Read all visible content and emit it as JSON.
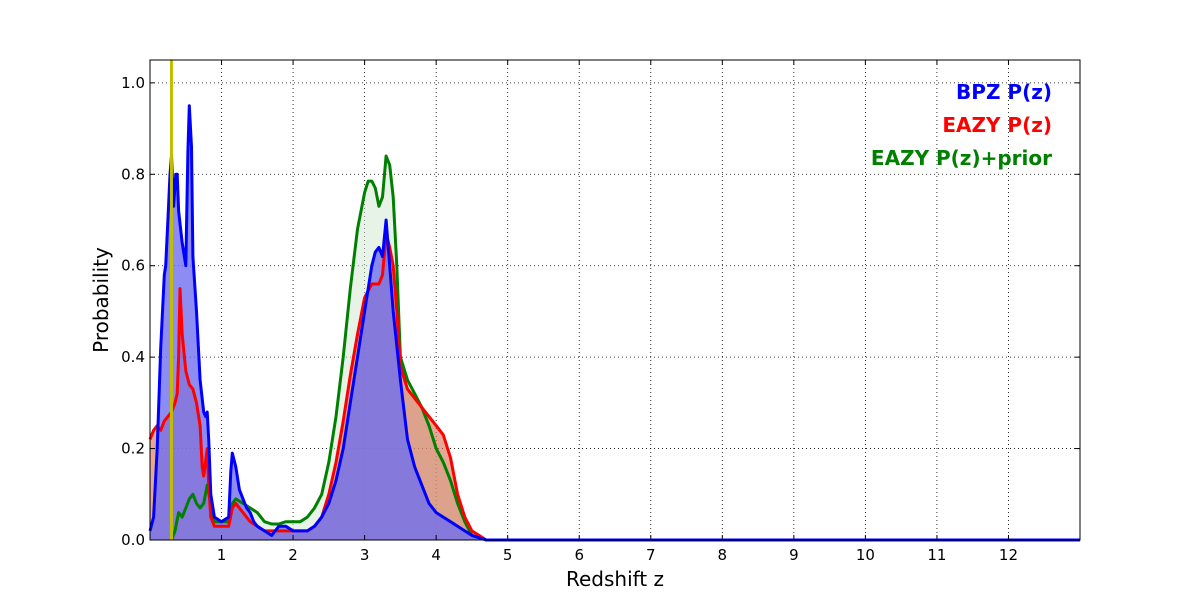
{
  "chart_data": {
    "type": "area",
    "title": "",
    "xlabel": "Redshift z",
    "ylabel": "Probability",
    "xlim": [
      0,
      13
    ],
    "ylim": [
      0,
      1.05
    ],
    "xticks": [
      1,
      2,
      3,
      4,
      5,
      6,
      7,
      8,
      9,
      10,
      11,
      12
    ],
    "yticks": [
      0.0,
      0.2,
      0.4,
      0.6,
      0.8,
      1.0
    ],
    "ytick_labels": [
      "0.0",
      "0.2",
      "0.4",
      "0.6",
      "0.8",
      "1.0"
    ],
    "grid": true,
    "legend_position": "top-right",
    "vertical_line": {
      "x": 0.3,
      "color": "#bfbf00"
    },
    "series": [
      {
        "name": "BPZ P(z)",
        "color": "#0000ff",
        "fill": "#6f6ff0",
        "points": [
          [
            0,
            0.02
          ],
          [
            0.05,
            0.05
          ],
          [
            0.1,
            0.2
          ],
          [
            0.15,
            0.42
          ],
          [
            0.2,
            0.58
          ],
          [
            0.22,
            0.6
          ],
          [
            0.25,
            0.7
          ],
          [
            0.28,
            0.8
          ],
          [
            0.3,
            0.84
          ],
          [
            0.33,
            0.73
          ],
          [
            0.36,
            0.8
          ],
          [
            0.38,
            0.8
          ],
          [
            0.4,
            0.72
          ],
          [
            0.45,
            0.65
          ],
          [
            0.5,
            0.6
          ],
          [
            0.53,
            0.85
          ],
          [
            0.55,
            0.95
          ],
          [
            0.58,
            0.86
          ],
          [
            0.6,
            0.62
          ],
          [
            0.65,
            0.5
          ],
          [
            0.7,
            0.35
          ],
          [
            0.75,
            0.28
          ],
          [
            0.78,
            0.27
          ],
          [
            0.8,
            0.28
          ],
          [
            0.82,
            0.22
          ],
          [
            0.85,
            0.1
          ],
          [
            0.9,
            0.05
          ],
          [
            1.0,
            0.04
          ],
          [
            1.1,
            0.05
          ],
          [
            1.13,
            0.15
          ],
          [
            1.15,
            0.19
          ],
          [
            1.2,
            0.16
          ],
          [
            1.25,
            0.11
          ],
          [
            1.3,
            0.09
          ],
          [
            1.35,
            0.07
          ],
          [
            1.4,
            0.06
          ],
          [
            1.45,
            0.04
          ],
          [
            1.5,
            0.03
          ],
          [
            1.6,
            0.02
          ],
          [
            1.7,
            0.01
          ],
          [
            1.8,
            0.03
          ],
          [
            1.9,
            0.03
          ],
          [
            2.0,
            0.02
          ],
          [
            2.1,
            0.02
          ],
          [
            2.2,
            0.02
          ],
          [
            2.3,
            0.03
          ],
          [
            2.4,
            0.05
          ],
          [
            2.5,
            0.08
          ],
          [
            2.6,
            0.13
          ],
          [
            2.7,
            0.2
          ],
          [
            2.8,
            0.3
          ],
          [
            2.9,
            0.4
          ],
          [
            3.0,
            0.5
          ],
          [
            3.1,
            0.6
          ],
          [
            3.15,
            0.63
          ],
          [
            3.2,
            0.64
          ],
          [
            3.25,
            0.62
          ],
          [
            3.3,
            0.7
          ],
          [
            3.35,
            0.6
          ],
          [
            3.4,
            0.5
          ],
          [
            3.5,
            0.35
          ],
          [
            3.6,
            0.22
          ],
          [
            3.7,
            0.16
          ],
          [
            3.8,
            0.12
          ],
          [
            3.9,
            0.08
          ],
          [
            4.0,
            0.06
          ],
          [
            4.1,
            0.05
          ],
          [
            4.2,
            0.04
          ],
          [
            4.3,
            0.03
          ],
          [
            4.4,
            0.02
          ],
          [
            4.5,
            0.01
          ],
          [
            4.7,
            0.0
          ],
          [
            13,
            0.0
          ]
        ]
      },
      {
        "name": "EAZY P(z)",
        "color": "#ff0000",
        "fill": "#d66d50",
        "points": [
          [
            0,
            0.22
          ],
          [
            0.05,
            0.24
          ],
          [
            0.1,
            0.25
          ],
          [
            0.15,
            0.24
          ],
          [
            0.2,
            0.26
          ],
          [
            0.25,
            0.27
          ],
          [
            0.3,
            0.28
          ],
          [
            0.35,
            0.3
          ],
          [
            0.38,
            0.32
          ],
          [
            0.4,
            0.4
          ],
          [
            0.42,
            0.55
          ],
          [
            0.45,
            0.45
          ],
          [
            0.5,
            0.37
          ],
          [
            0.55,
            0.34
          ],
          [
            0.6,
            0.33
          ],
          [
            0.65,
            0.3
          ],
          [
            0.7,
            0.25
          ],
          [
            0.73,
            0.16
          ],
          [
            0.75,
            0.14
          ],
          [
            0.8,
            0.2
          ],
          [
            0.82,
            0.12
          ],
          [
            0.85,
            0.05
          ],
          [
            0.9,
            0.03
          ],
          [
            1.0,
            0.03
          ],
          [
            1.1,
            0.03
          ],
          [
            1.15,
            0.07
          ],
          [
            1.2,
            0.08
          ],
          [
            1.3,
            0.06
          ],
          [
            1.4,
            0.04
          ],
          [
            1.5,
            0.03
          ],
          [
            1.6,
            0.02
          ],
          [
            1.7,
            0.02
          ],
          [
            1.8,
            0.02
          ],
          [
            1.9,
            0.02
          ],
          [
            2.0,
            0.02
          ],
          [
            2.1,
            0.02
          ],
          [
            2.2,
            0.02
          ],
          [
            2.3,
            0.03
          ],
          [
            2.4,
            0.05
          ],
          [
            2.5,
            0.1
          ],
          [
            2.6,
            0.17
          ],
          [
            2.7,
            0.26
          ],
          [
            2.8,
            0.36
          ],
          [
            2.9,
            0.45
          ],
          [
            3.0,
            0.53
          ],
          [
            3.1,
            0.56
          ],
          [
            3.2,
            0.56
          ],
          [
            3.25,
            0.58
          ],
          [
            3.3,
            0.67
          ],
          [
            3.35,
            0.64
          ],
          [
            3.4,
            0.6
          ],
          [
            3.45,
            0.5
          ],
          [
            3.5,
            0.38
          ],
          [
            3.6,
            0.33
          ],
          [
            3.7,
            0.31
          ],
          [
            3.8,
            0.29
          ],
          [
            3.9,
            0.27
          ],
          [
            4.0,
            0.25
          ],
          [
            4.1,
            0.23
          ],
          [
            4.2,
            0.18
          ],
          [
            4.3,
            0.1
          ],
          [
            4.4,
            0.05
          ],
          [
            4.5,
            0.02
          ],
          [
            4.6,
            0.01
          ],
          [
            4.7,
            0.0
          ],
          [
            13,
            0.0
          ]
        ]
      },
      {
        "name": "EAZY P(z)+prior",
        "color": "#008000",
        "fill": "#cfe8cf",
        "points": [
          [
            0.3,
            0.0
          ],
          [
            0.35,
            0.02
          ],
          [
            0.4,
            0.06
          ],
          [
            0.45,
            0.05
          ],
          [
            0.5,
            0.07
          ],
          [
            0.55,
            0.09
          ],
          [
            0.6,
            0.1
          ],
          [
            0.65,
            0.08
          ],
          [
            0.7,
            0.07
          ],
          [
            0.75,
            0.08
          ],
          [
            0.8,
            0.12
          ],
          [
            0.85,
            0.08
          ],
          [
            0.9,
            0.04
          ],
          [
            1.0,
            0.04
          ],
          [
            1.1,
            0.04
          ],
          [
            1.15,
            0.08
          ],
          [
            1.2,
            0.09
          ],
          [
            1.3,
            0.08
          ],
          [
            1.4,
            0.07
          ],
          [
            1.5,
            0.06
          ],
          [
            1.6,
            0.04
          ],
          [
            1.7,
            0.035
          ],
          [
            1.8,
            0.035
          ],
          [
            1.9,
            0.04
          ],
          [
            2.0,
            0.04
          ],
          [
            2.1,
            0.04
          ],
          [
            2.2,
            0.05
          ],
          [
            2.3,
            0.07
          ],
          [
            2.4,
            0.1
          ],
          [
            2.5,
            0.17
          ],
          [
            2.6,
            0.27
          ],
          [
            2.7,
            0.4
          ],
          [
            2.8,
            0.55
          ],
          [
            2.9,
            0.68
          ],
          [
            3.0,
            0.76
          ],
          [
            3.05,
            0.785
          ],
          [
            3.1,
            0.785
          ],
          [
            3.15,
            0.77
          ],
          [
            3.2,
            0.73
          ],
          [
            3.25,
            0.75
          ],
          [
            3.3,
            0.84
          ],
          [
            3.35,
            0.82
          ],
          [
            3.4,
            0.75
          ],
          [
            3.45,
            0.6
          ],
          [
            3.5,
            0.4
          ],
          [
            3.6,
            0.35
          ],
          [
            3.7,
            0.32
          ],
          [
            3.8,
            0.29
          ],
          [
            3.9,
            0.25
          ],
          [
            4.0,
            0.2
          ],
          [
            4.1,
            0.17
          ],
          [
            4.2,
            0.13
          ],
          [
            4.3,
            0.08
          ],
          [
            4.4,
            0.04
          ],
          [
            4.5,
            0.01
          ],
          [
            4.6,
            0.005
          ],
          [
            4.7,
            0.0
          ],
          [
            13,
            0.0
          ]
        ]
      }
    ]
  }
}
